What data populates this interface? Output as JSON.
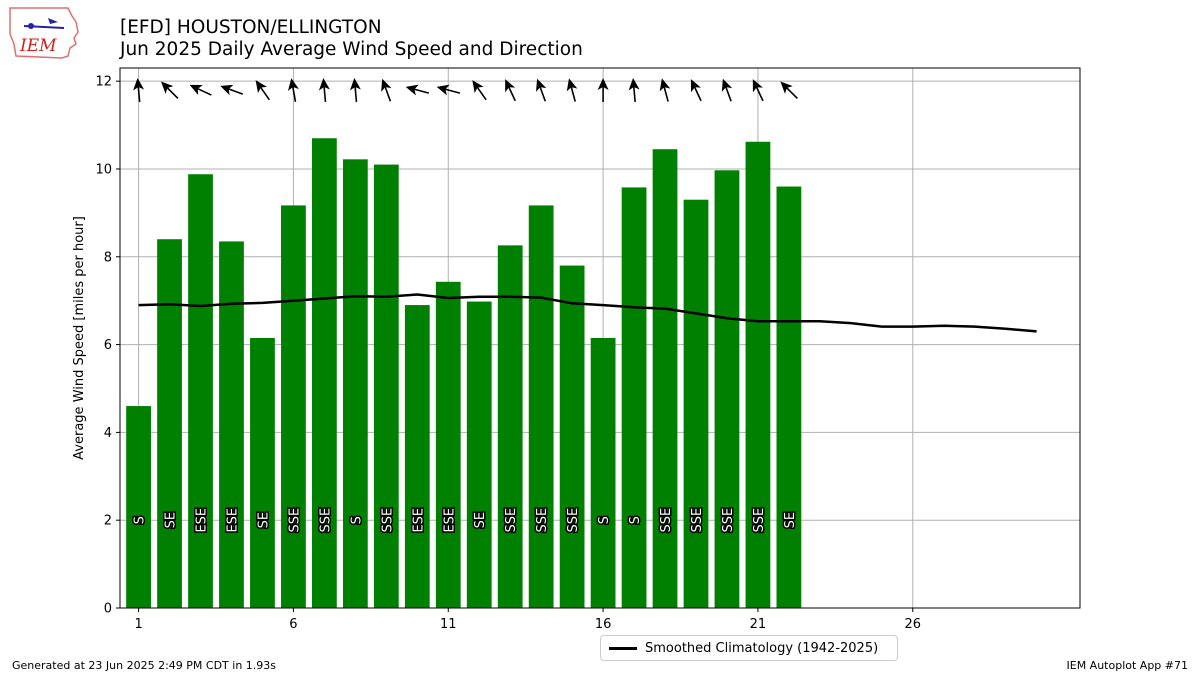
{
  "header": {
    "logo_text": "IEM",
    "title_line1": "[EFD] HOUSTON/ELLINGTON",
    "title_line2": "Jun 2025 Daily Average Wind Speed and Direction"
  },
  "footer": {
    "left": "Generated at 23 Jun 2025 2:49 PM CDT in 1.93s",
    "right": "IEM Autoplot App #71"
  },
  "colors": {
    "bar": "#008000",
    "climatology": "#000000",
    "grid": "#b0b0b0"
  },
  "chart_data": {
    "type": "bar",
    "ylabel": "Average Wind Speed [miles per hour]",
    "xlabel": "",
    "ylim": [
      0,
      12.3
    ],
    "xlim": [
      0.4,
      31.4
    ],
    "xticks": [
      1,
      6,
      11,
      16,
      21,
      26
    ],
    "yticks": [
      0,
      2,
      4,
      6,
      8,
      10,
      12
    ],
    "grid": true,
    "legend_position": "bottom-center, below axes",
    "days": [
      1,
      2,
      3,
      4,
      5,
      6,
      7,
      8,
      9,
      10,
      11,
      12,
      13,
      14,
      15,
      16,
      17,
      18,
      19,
      20,
      21,
      22
    ],
    "values": [
      4.6,
      8.4,
      9.88,
      8.35,
      6.15,
      9.17,
      10.7,
      10.22,
      10.1,
      6.9,
      7.43,
      6.98,
      8.26,
      9.17,
      7.8,
      6.15,
      9.58,
      10.45,
      9.3,
      9.97,
      10.62,
      9.6
    ],
    "directions": [
      "S",
      "SE",
      "ESE",
      "ESE",
      "SE",
      "SSE",
      "SSE",
      "S",
      "SSE",
      "ESE",
      "ESE",
      "SE",
      "SSE",
      "SSE",
      "SSE",
      "S",
      "S",
      "SSE",
      "SSE",
      "SSE",
      "SSE",
      "SE"
    ],
    "arrow_bearings_deg": [
      355,
      315,
      295,
      290,
      325,
      350,
      355,
      355,
      340,
      285,
      285,
      325,
      335,
      340,
      345,
      0,
      355,
      345,
      335,
      340,
      335,
      315
    ],
    "series": [
      {
        "name": "Smoothed Climatology (1942-2025)",
        "type": "line",
        "x": [
          1,
          2,
          3,
          4,
          5,
          6,
          7,
          8,
          9,
          10,
          11,
          12,
          13,
          14,
          15,
          16,
          17,
          18,
          19,
          20,
          21,
          22,
          23,
          24,
          25,
          26,
          27,
          28,
          29,
          30
        ],
        "values": [
          6.9,
          6.92,
          6.88,
          6.93,
          6.95,
          7.0,
          7.05,
          7.1,
          7.09,
          7.14,
          7.06,
          7.09,
          7.09,
          7.07,
          6.94,
          6.9,
          6.85,
          6.82,
          6.71,
          6.6,
          6.53,
          6.53,
          6.53,
          6.49,
          6.41,
          6.41,
          6.43,
          6.41,
          6.36,
          6.3
        ]
      }
    ]
  }
}
